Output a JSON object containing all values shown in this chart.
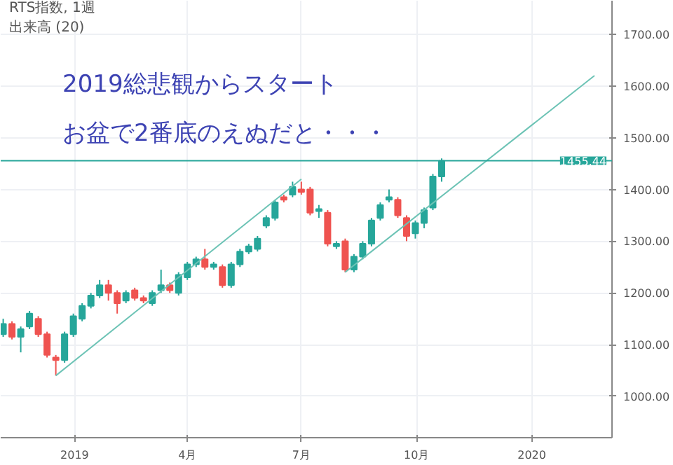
{
  "chart_data": {
    "type": "candlestick",
    "title": "RTS指数, 1週",
    "subtitle": "出来高 (20)",
    "annotations": [
      "2019総悲観からスタート",
      "お盆で2番底のえぬだと・・・"
    ],
    "x": [
      "2018-11-05",
      "2018-11-12",
      "2018-11-19",
      "2018-11-26",
      "2018-12-03",
      "2018-12-10",
      "2018-12-17",
      "2018-12-24",
      "2018-12-31",
      "2019-01-07",
      "2019-01-14",
      "2019-01-21",
      "2019-01-28",
      "2019-02-04",
      "2019-02-11",
      "2019-02-18",
      "2019-02-25",
      "2019-03-04",
      "2019-03-11",
      "2019-03-18",
      "2019-03-25",
      "2019-04-01",
      "2019-04-08",
      "2019-04-15",
      "2019-04-22",
      "2019-04-29",
      "2019-05-06",
      "2019-05-13",
      "2019-05-20",
      "2019-05-27",
      "2019-06-03",
      "2019-06-10",
      "2019-06-17",
      "2019-06-24",
      "2019-07-01",
      "2019-07-08",
      "2019-07-15",
      "2019-07-22",
      "2019-07-29",
      "2019-08-05",
      "2019-08-12",
      "2019-08-19",
      "2019-08-26",
      "2019-09-02",
      "2019-09-09",
      "2019-09-16",
      "2019-09-23",
      "2019-09-30",
      "2019-10-07",
      "2019-10-14",
      "2019-10-21"
    ],
    "ohlc": [
      [
        1120,
        1150,
        1115,
        1140
      ],
      [
        1140,
        1145,
        1110,
        1115
      ],
      [
        1115,
        1135,
        1085,
        1130
      ],
      [
        1135,
        1165,
        1130,
        1160
      ],
      [
        1150,
        1155,
        1115,
        1120
      ],
      [
        1120,
        1125,
        1075,
        1080
      ],
      [
        1075,
        1080,
        1040,
        1070
      ],
      [
        1070,
        1125,
        1065,
        1120
      ],
      [
        1120,
        1160,
        1115,
        1155
      ],
      [
        1150,
        1180,
        1145,
        1175
      ],
      [
        1175,
        1200,
        1170,
        1195
      ],
      [
        1195,
        1225,
        1190,
        1215
      ],
      [
        1215,
        1225,
        1185,
        1200
      ],
      [
        1200,
        1205,
        1160,
        1180
      ],
      [
        1185,
        1205,
        1180,
        1200
      ],
      [
        1205,
        1210,
        1185,
        1190
      ],
      [
        1190,
        1195,
        1180,
        1185
      ],
      [
        1180,
        1205,
        1175,
        1200
      ],
      [
        1205,
        1245,
        1200,
        1215
      ],
      [
        1215,
        1220,
        1200,
        1205
      ],
      [
        1200,
        1240,
        1195,
        1235
      ],
      [
        1230,
        1260,
        1225,
        1255
      ],
      [
        1255,
        1270,
        1250,
        1265
      ],
      [
        1265,
        1285,
        1245,
        1250
      ],
      [
        1250,
        1260,
        1245,
        1255
      ],
      [
        1250,
        1255,
        1210,
        1215
      ],
      [
        1215,
        1260,
        1210,
        1255
      ],
      [
        1255,
        1285,
        1250,
        1280
      ],
      [
        1280,
        1295,
        1275,
        1290
      ],
      [
        1285,
        1310,
        1280,
        1305
      ],
      [
        1330,
        1350,
        1325,
        1345
      ],
      [
        1345,
        1380,
        1340,
        1375
      ],
      [
        1385,
        1390,
        1375,
        1380
      ],
      [
        1390,
        1415,
        1385,
        1405
      ],
      [
        1400,
        1415,
        1390,
        1395
      ],
      [
        1400,
        1405,
        1350,
        1355
      ],
      [
        1358,
        1370,
        1345,
        1362
      ],
      [
        1355,
        1360,
        1290,
        1295
      ],
      [
        1290,
        1300,
        1285,
        1295
      ],
      [
        1300,
        1305,
        1240,
        1245
      ],
      [
        1245,
        1275,
        1240,
        1270
      ],
      [
        1270,
        1300,
        1265,
        1295
      ],
      [
        1295,
        1345,
        1290,
        1340
      ],
      [
        1345,
        1375,
        1340,
        1370
      ],
      [
        1380,
        1400,
        1375,
        1385
      ],
      [
        1380,
        1385,
        1345,
        1350
      ],
      [
        1345,
        1350,
        1300,
        1310
      ],
      [
        1315,
        1340,
        1305,
        1335
      ],
      [
        1335,
        1365,
        1325,
        1360
      ],
      [
        1365,
        1430,
        1360,
        1425
      ],
      [
        1425,
        1460,
        1415,
        1455.44
      ]
    ],
    "colors": [
      "#26a69a",
      "#ef5350",
      "#26a69a",
      "#26a69a",
      "#ef5350",
      "#ef5350",
      "#ef5350",
      "#26a69a",
      "#26a69a",
      "#26a69a",
      "#26a69a",
      "#26a69a",
      "#ef5350",
      "#ef5350",
      "#26a69a",
      "#ef5350",
      "#ef5350",
      "#26a69a",
      "#26a69a",
      "#ef5350",
      "#26a69a",
      "#26a69a",
      "#26a69a",
      "#ef5350",
      "#26a69a",
      "#ef5350",
      "#26a69a",
      "#26a69a",
      "#26a69a",
      "#26a69a",
      "#26a69a",
      "#26a69a",
      "#ef5350",
      "#26a69a",
      "#ef5350",
      "#ef5350",
      "#26a69a",
      "#ef5350",
      "#26a69a",
      "#ef5350",
      "#26a69a",
      "#26a69a",
      "#26a69a",
      "#26a69a",
      "#26a69a",
      "#ef5350",
      "#ef5350",
      "#26a69a",
      "#26a69a",
      "#26a69a",
      "#26a69a"
    ],
    "series": [
      {
        "type": "line",
        "color": "#6cc3b5",
        "x": [
          "2018-12-17",
          "2019-07-01"
        ],
        "values": [
          1040,
          1420
        ]
      },
      {
        "type": "line",
        "color": "#6cc3b5",
        "x": [
          "2019-08-05",
          "2020-02-20"
        ],
        "values": [
          1240,
          1620
        ]
      }
    ],
    "ref_lines": [
      {
        "axis": "y",
        "value": 1455.44,
        "label": "1455.44",
        "color": "#26a69a"
      }
    ],
    "xlim": [
      "2018-11-03",
      "2020-03-05"
    ],
    "ylim": [
      920,
      1765
    ],
    "xticks": [
      {
        "value": "2019-01-01",
        "label": "2019"
      },
      {
        "value": "2019-04-01",
        "label": "4月"
      },
      {
        "value": "2019-07-01",
        "label": "7月"
      },
      {
        "value": "2019-10-01",
        "label": "10月"
      },
      {
        "value": "2020-01-01",
        "label": "2020"
      }
    ],
    "yticks": [
      {
        "value": 1000,
        "label": "1000.00"
      },
      {
        "value": 1100,
        "label": "1100.00"
      },
      {
        "value": 1200,
        "label": "1200.00"
      },
      {
        "value": 1300,
        "label": "1300.00"
      },
      {
        "value": 1400,
        "label": "1400.00"
      },
      {
        "value": 1500,
        "label": "1500.00"
      },
      {
        "value": 1600,
        "label": "1600.00"
      },
      {
        "value": 1700,
        "label": "1700.00"
      }
    ],
    "grid": true
  }
}
